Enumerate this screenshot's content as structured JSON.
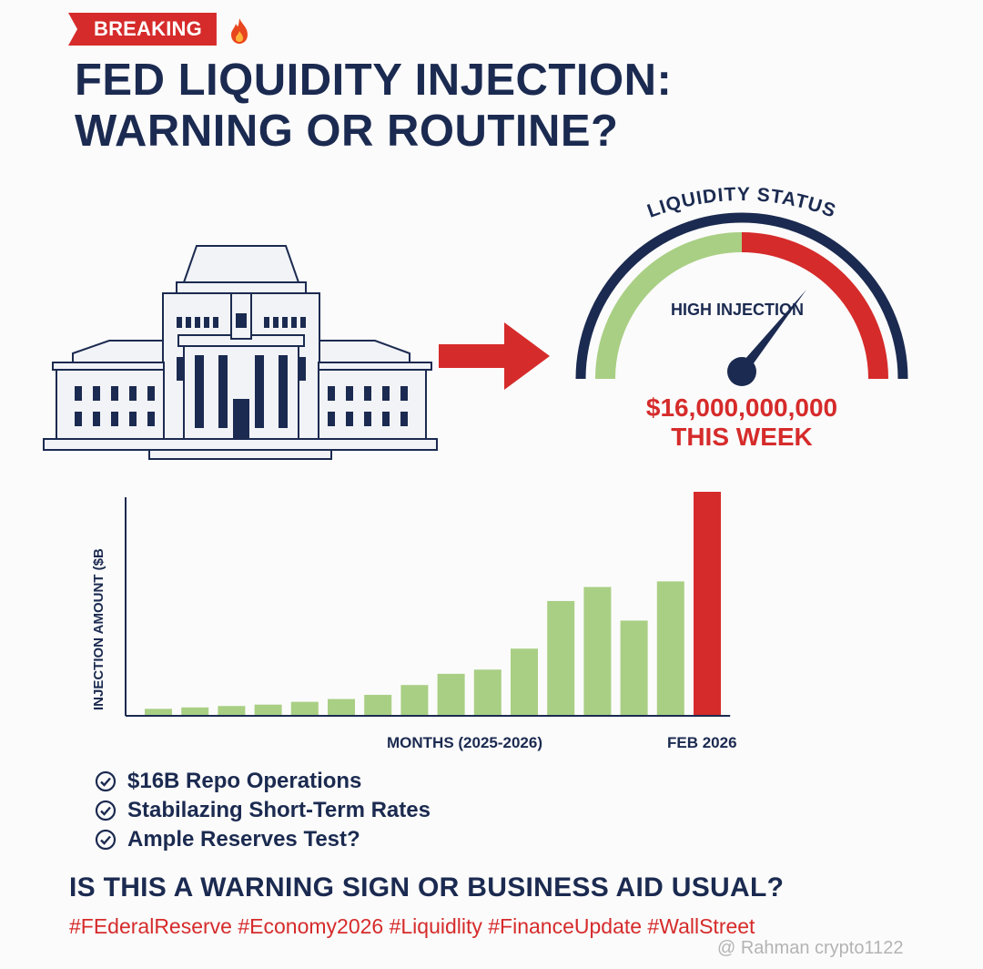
{
  "header": {
    "badge": "BREAKING",
    "title_line1": "FED LIQUIDITY INJECTION:",
    "title_line2": "WARNING OR ROUTINE?"
  },
  "gauge": {
    "title": "LIQUIDITY STATUS",
    "label": "HIGH INJECTION",
    "amount": "$16,000,000,000",
    "period": "THIS WEEK"
  },
  "chart_data": {
    "type": "bar",
    "ylabel": "INJECTION AMOUNT ($B",
    "xlabel": "MONTHS (2025-2026)",
    "categories": [
      "",
      "",
      "",
      "",
      "",
      "",
      "",
      "",
      "",
      "",
      "",
      "",
      "",
      "",
      "",
      "FEB 2026"
    ],
    "values": [
      0.5,
      0.6,
      0.7,
      0.8,
      1.0,
      1.2,
      1.5,
      2.2,
      3.0,
      3.3,
      4.8,
      8.2,
      9.2,
      6.8,
      9.6,
      16
    ],
    "highlight_index": 15,
    "ylim": [
      0,
      16
    ],
    "colors": {
      "normal": "#a9cf84",
      "highlight": "#d62b2b"
    }
  },
  "checklist": [
    "$16B Repo Operations",
    "Stabilazing Short-Term Rates",
    "Ample Reserves Test?"
  ],
  "footer": {
    "question": "IS THIS A WARNING SIGN OR BUSINESS AID USUAL?",
    "hashtags": "#FEderalReserve #Economy2026 #Liquidlity #FinanceUpdate #WallStreet",
    "watermark": "@ Rahman crypto1122"
  },
  "icons": {
    "badge_icon": "fire-icon",
    "left_illustration": "federal-reserve-building-icon",
    "arrow": "right-arrow-icon",
    "check": "check-circle-icon"
  },
  "colors": {
    "navy": "#1b2a50",
    "red": "#d62b2b",
    "green": "#a9cf84"
  }
}
